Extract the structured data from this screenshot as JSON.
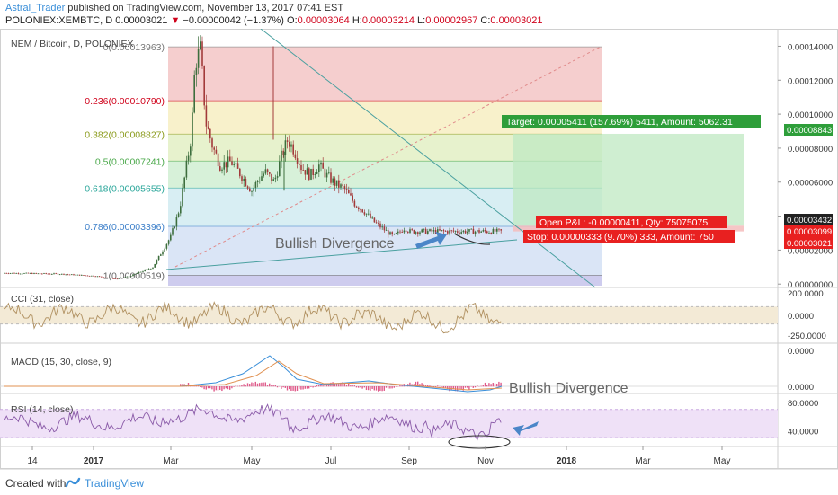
{
  "header": {
    "author": "Astral_Trader",
    "published": " published on TradingView.com, November 13, 2017 07:41 EST",
    "symbol": "POLONIEX:XEMBTC, D",
    "price": "0.00003021",
    "change_arrow": "▼",
    "change": "−0.00000042 (−1.37%)",
    "o_label": "O:",
    "o_val": "0.00003064",
    "h_label": "H:",
    "h_val": "0.00003214",
    "l_label": "L:",
    "l_val": "0.00002967",
    "c_label": "C:",
    "c_val": "0.00003021"
  },
  "colors": {
    "candle_up": "#3d6e3d",
    "candle_down": "#a23a3a",
    "badge_green": "#2e9e3a",
    "badge_red": "#e82020",
    "annotation_blue": "#4b86c8",
    "text_blue": "#3a8fd9"
  },
  "chart_data": [
    {
      "type": "candlestick",
      "title": "NEM / Bitcoin, D, POLONIEX",
      "x_ticks": [
        "14",
        "2017",
        "Mar",
        "May",
        "Jul",
        "Sep",
        "Nov",
        "2018",
        "Mar",
        "May"
      ],
      "y_ticks": [
        "0.00014000",
        "0.00012000",
        "0.00010000",
        "0.00008000",
        "0.00006000",
        "0.00004000",
        "0.00002000",
        "0.00000000"
      ],
      "ylim": [
        -2e-06,
        0.000145
      ],
      "price_badges": [
        "0.00008843",
        "0.00003432",
        "0.00003099",
        "0.00003021"
      ],
      "fib_levels": [
        {
          "label": "0(0.00013963)",
          "value": 0.00013963
        },
        {
          "label": "0.236(0.00010790)",
          "value": 0.0001079
        },
        {
          "label": "0.382(0.00008827)",
          "value": 8.827e-05
        },
        {
          "label": "0.5(0.00007241)",
          "value": 7.241e-05
        },
        {
          "label": "0.618(0.00005655)",
          "value": 5.655e-05
        },
        {
          "label": "0.786(0.00003396)",
          "value": 3.396e-05
        },
        {
          "label": "1(0.00000519)",
          "value": 5.19e-06
        }
      ],
      "close_path": [
        [
          0,
          6.5e-06
        ],
        [
          60,
          6e-06
        ],
        [
          100,
          4.8e-06
        ],
        [
          125,
          3e-06
        ],
        [
          140,
          4.8e-06
        ],
        [
          165,
          1e-05
        ],
        [
          185,
          2.8e-05
        ],
        [
          195,
          4.5e-05
        ],
        [
          208,
          8.8e-05
        ],
        [
          212,
          0.00013
        ],
        [
          218,
          0.000138
        ],
        [
          224,
          9.5e-05
        ],
        [
          232,
          8e-05
        ],
        [
          240,
          7e-05
        ],
        [
          252,
          7.2e-05
        ],
        [
          262,
          6.5e-05
        ],
        [
          275,
          5.5e-05
        ],
        [
          283,
          6.2e-05
        ],
        [
          290,
          6.6e-05
        ],
        [
          300,
          6e-05
        ],
        [
          308,
          7.5e-05
        ],
        [
          315,
          8.5e-05
        ],
        [
          322,
          7.9e-05
        ],
        [
          330,
          6.9e-05
        ],
        [
          340,
          6.4e-05
        ],
        [
          350,
          7e-05
        ],
        [
          358,
          6.4e-05
        ],
        [
          368,
          5.9e-05
        ],
        [
          378,
          5.6e-05
        ],
        [
          390,
          4.7e-05
        ],
        [
          400,
          4.3e-05
        ],
        [
          410,
          3.7e-05
        ],
        [
          420,
          3.3e-05
        ],
        [
          432,
          2.8e-05
        ],
        [
          438,
          3e-05
        ],
        [
          445,
          3.3e-05
        ],
        [
          450,
          3.1e-05
        ]
      ],
      "target_label": "Target: 0.00005411 (157.69%) 5411, Amount: 5062.31",
      "open_pnl_label": "Open P&L: -0.00000411, Qty: 75075075",
      "stop_label": "Stop: 0.00000333 (9.70%) 333, Amount: 750",
      "annotation": "Bullish Divergence"
    },
    {
      "type": "line",
      "title": "CCI (31, close)",
      "y_ticks": [
        "200.0000",
        "0.0000",
        "-250.0000"
      ],
      "ylim": [
        -300,
        300
      ]
    },
    {
      "type": "line",
      "title": "MACD (15, 30, close, 9)",
      "y_ticks": [
        "0.0000",
        "0.0000"
      ],
      "annotation": "Bullish Divergence"
    },
    {
      "type": "line",
      "title": "RSI (14, close)",
      "y_ticks": [
        "80.0000",
        "40.0000"
      ],
      "ylim": [
        20,
        90
      ]
    }
  ],
  "footer": {
    "created_with": "Created with",
    "brand": "TradingView"
  }
}
